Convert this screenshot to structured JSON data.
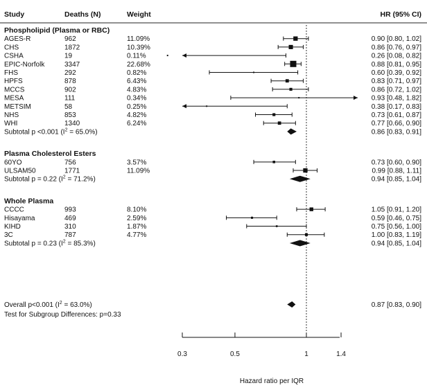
{
  "chart_data": {
    "type": "forest",
    "columns": {
      "study": "Study",
      "deaths": "Deaths (N)",
      "weight": "Weight",
      "hr": "HR (95% CI)"
    },
    "xlabel": "Hazard ratio per IQR",
    "x_scale": "log",
    "xlim": [
      0.3,
      1.4
    ],
    "xticks": [
      0.3,
      0.5,
      1,
      1.4
    ],
    "xtick_labels": [
      "0.3",
      "0.5",
      "1",
      "1.4"
    ],
    "reference_line": 1,
    "groups": [
      {
        "name": "Phospholipid (Plasma or RBC)",
        "studies": [
          {
            "study": "AGES-R",
            "deaths": "962",
            "weight": "11.09%",
            "hr": 0.9,
            "lo": 0.8,
            "hi": 1.02,
            "ci_text": "0.90 [0.80, 1.02]"
          },
          {
            "study": "CHS",
            "deaths": "1872",
            "weight": "10.39%",
            "hr": 0.86,
            "lo": 0.76,
            "hi": 0.97,
            "ci_text": "0.86 [0.76, 0.97]"
          },
          {
            "study": "CSHA",
            "deaths": "19",
            "weight": "0.11%",
            "hr": 0.26,
            "lo": 0.08,
            "hi": 0.82,
            "ci_text": "0.26 [0.08, 0.82]"
          },
          {
            "study": "EPIC-Norfolk",
            "deaths": "3347",
            "weight": "22.68%",
            "hr": 0.88,
            "lo": 0.81,
            "hi": 0.95,
            "ci_text": "0.88 [0.81, 0.95]"
          },
          {
            "study": "FHS",
            "deaths": "292",
            "weight": "0.82%",
            "hr": 0.6,
            "lo": 0.39,
            "hi": 0.92,
            "ci_text": "0.60 [0.39, 0.92]"
          },
          {
            "study": "HPFS",
            "deaths": "878",
            "weight": "6.43%",
            "hr": 0.83,
            "lo": 0.71,
            "hi": 0.97,
            "ci_text": "0.83 [0.71, 0.97]"
          },
          {
            "study": "MCCS",
            "deaths": "902",
            "weight": "4.83%",
            "hr": 0.86,
            "lo": 0.72,
            "hi": 1.02,
            "ci_text": "0.86 [0.72, 1.02]"
          },
          {
            "study": "MESA",
            "deaths": "111",
            "weight": "0.34%",
            "hr": 0.93,
            "lo": 0.48,
            "hi": 1.82,
            "ci_text": "0.93 [0.48, 1.82]"
          },
          {
            "study": "METSIM",
            "deaths": "58",
            "weight": "0.25%",
            "hr": 0.38,
            "lo": 0.17,
            "hi": 0.83,
            "ci_text": "0.38 [0.17, 0.83]"
          },
          {
            "study": "NHS",
            "deaths": "853",
            "weight": "4.82%",
            "hr": 0.73,
            "lo": 0.61,
            "hi": 0.87,
            "ci_text": "0.73 [0.61, 0.87]"
          },
          {
            "study": "WHI",
            "deaths": "1340",
            "weight": "6.24%",
            "hr": 0.77,
            "lo": 0.66,
            "hi": 0.9,
            "ci_text": "0.77 [0.66, 0.90]"
          }
        ],
        "subtotal": {
          "p_text": "p <0.001",
          "i2": "65.0%",
          "hr": 0.86,
          "lo": 0.83,
          "hi": 0.91,
          "ci_text": "0.86 [0.83, 0.91]"
        }
      },
      {
        "name": "Plasma Cholesterol Esters",
        "studies": [
          {
            "study": "60YO",
            "deaths": "756",
            "weight": "3.57%",
            "hr": 0.73,
            "lo": 0.6,
            "hi": 0.9,
            "ci_text": "0.73 [0.60, 0.90]"
          },
          {
            "study": "ULSAM50",
            "deaths": "1771",
            "weight": "11.09%",
            "hr": 0.99,
            "lo": 0.88,
            "hi": 1.11,
            "ci_text": "0.99 [0.88, 1.11]"
          }
        ],
        "subtotal": {
          "p_text": "p = 0.22",
          "i2": "71.2%",
          "hr": 0.94,
          "lo": 0.85,
          "hi": 1.04,
          "ci_text": "0.94 [0.85, 1.04]"
        }
      },
      {
        "name": "Whole Plasma",
        "studies": [
          {
            "study": "CCCC",
            "deaths": "993",
            "weight": "8.10%",
            "hr": 1.05,
            "lo": 0.91,
            "hi": 1.2,
            "ci_text": "1.05 [0.91, 1.20]"
          },
          {
            "study": "Hisayama",
            "deaths": "469",
            "weight": "2.59%",
            "hr": 0.59,
            "lo": 0.46,
            "hi": 0.75,
            "ci_text": "0.59 [0.46, 0.75]"
          },
          {
            "study": "KIHD",
            "deaths": "310",
            "weight": "1.87%",
            "hr": 0.75,
            "lo": 0.56,
            "hi": 1.0,
            "ci_text": "0.75 [0.56, 1.00]"
          },
          {
            "study": "3C",
            "deaths": "787",
            "weight": "4.77%",
            "hr": 1.0,
            "lo": 0.83,
            "hi": 1.19,
            "ci_text": "1.00 [0.83, 1.19]"
          }
        ],
        "subtotal": {
          "p_text": "p = 0.23",
          "i2": "85.3%",
          "hr": 0.94,
          "lo": 0.85,
          "hi": 1.04,
          "ci_text": "0.94 [0.85, 1.04]"
        }
      }
    ],
    "overall": {
      "p_text": "p<0.001",
      "i2": "63.0%",
      "hr": 0.87,
      "lo": 0.83,
      "hi": 0.9,
      "ci_text": "0.87 [0.83, 0.90]"
    },
    "subgroup_test": "Test for Subgroup Differences: p=0.33"
  }
}
